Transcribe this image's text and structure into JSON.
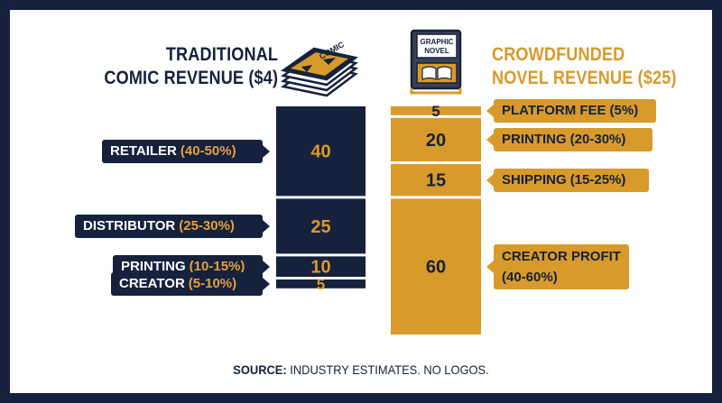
{
  "left_heading": {
    "line1": "TRADITIONAL",
    "line2": "COMIC REVENUE ($4)"
  },
  "right_heading": {
    "line1": "CROWDFUNDED",
    "line2": "NOVEL REVENUE ($25)"
  },
  "icons": {
    "comic": {
      "name": "comic-stack-icon",
      "text": "COMIC"
    },
    "book": {
      "name": "graphic-novel-book-icon",
      "line1": "GRAPHIC",
      "line2": "NOVEL"
    }
  },
  "colors": {
    "navy": "#16213d",
    "gold": "#d89a2b",
    "gold_text": "#e0a13a",
    "white": "#ffffff"
  },
  "chart_data": {
    "type": "bar",
    "stacked": true,
    "units": "%",
    "series": [
      {
        "name": "TRADITIONAL COMIC REVENUE ($4)",
        "color": "#16213d",
        "segments": [
          {
            "value": 40,
            "name": "RETAILER",
            "range": "(40-50%)"
          },
          {
            "value": 25,
            "name": "DISTRIBUTOR",
            "range": "(25-30%)"
          },
          {
            "value": 10,
            "name": "PRINTING",
            "range": "(10-15%)"
          },
          {
            "value": 5,
            "name": "CREATOR",
            "range": "(5-10%)"
          }
        ]
      },
      {
        "name": "CROWDFUNDED NOVEL REVENUE ($25)",
        "color": "#d89a2b",
        "segments": [
          {
            "value": 5,
            "name": "PLATFORM FEE",
            "range": "(5%)"
          },
          {
            "value": 20,
            "name": "PRINTING",
            "range": "(20-30%)"
          },
          {
            "value": 15,
            "name": "SHIPPING",
            "range": "(15-25%)"
          },
          {
            "value": 60,
            "name": "CREATOR PROFIT",
            "range": "(40-60%)"
          }
        ]
      }
    ]
  },
  "footer": {
    "source_label": "SOURCE:",
    "source_text": " INDUSTRY ESTIMATES. NO LOGOS."
  }
}
